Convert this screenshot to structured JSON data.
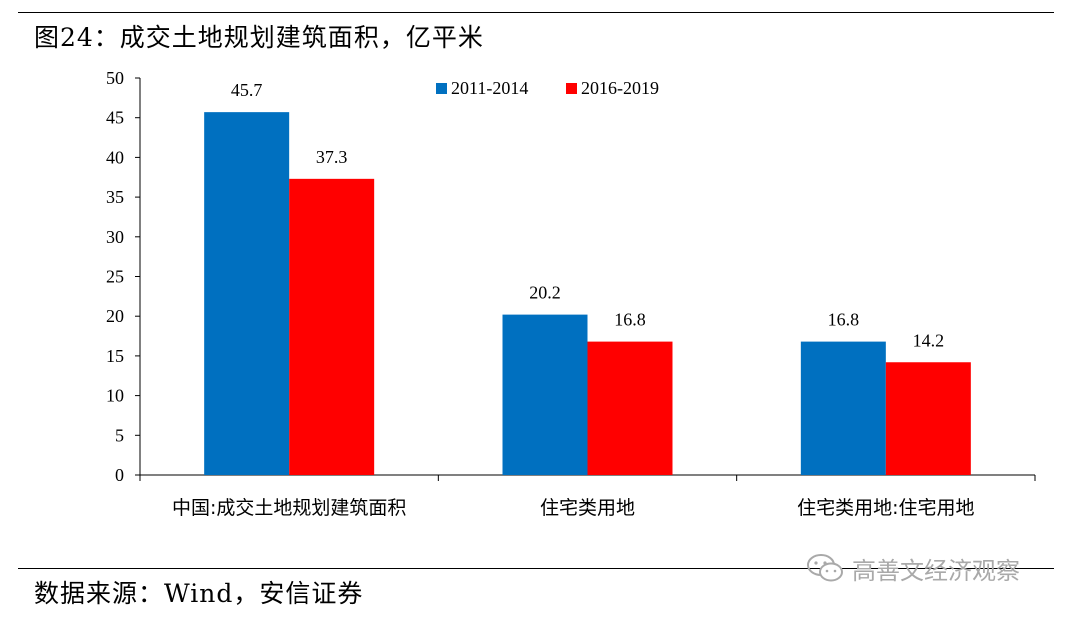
{
  "header": {
    "title": "图24：成交土地规划建筑面积，亿平米"
  },
  "footer": {
    "source": "数据来源：Wind，安信证券"
  },
  "watermark": {
    "text": "高善文经济观察",
    "icon": "wechat-icon"
  },
  "colors": {
    "series_2011_2014": "#0070C0",
    "series_2016_2019": "#FF0000"
  },
  "chart_data": {
    "type": "bar",
    "title": "",
    "xlabel": "",
    "ylabel": "",
    "ylim": [
      0,
      50
    ],
    "yticks": [
      "0",
      "5",
      "10",
      "15",
      "20",
      "25",
      "30",
      "35",
      "40",
      "45",
      "50"
    ],
    "grid": false,
    "legend_position": "top-right",
    "categories": [
      "中国:成交土地规划建筑面积",
      "住宅类用地",
      "住宅类用地:住宅用地"
    ],
    "series": [
      {
        "name": "2011-2014",
        "values": [
          45.7,
          20.2,
          16.8
        ],
        "labels": [
          "45.7",
          "20.2",
          "16.8"
        ],
        "color": "#0070C0"
      },
      {
        "name": "2016-2019",
        "values": [
          37.3,
          16.8,
          14.2
        ],
        "labels": [
          "37.3",
          "16.8",
          "14.2"
        ],
        "color": "#FF0000"
      }
    ]
  }
}
